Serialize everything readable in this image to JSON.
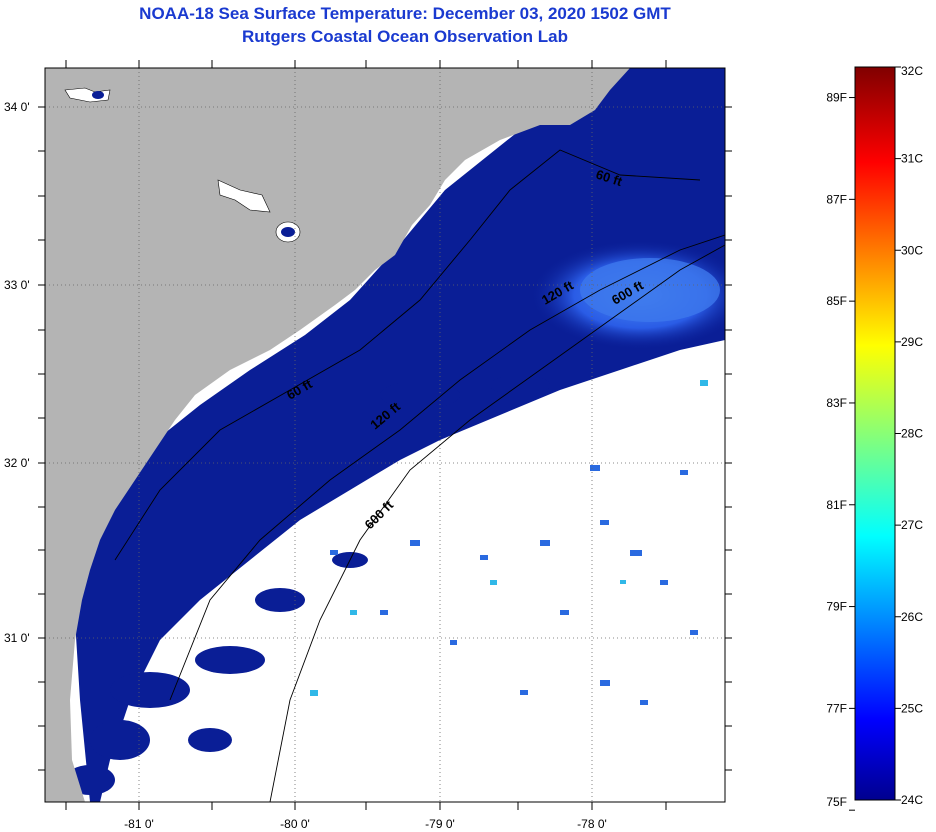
{
  "title": "NOAA-18 Sea Surface Temperature:  December 03, 2020 1502 GMT",
  "subtitle": "Rutgers Coastal Ocean Observation Lab",
  "map": {
    "lat_ticks": [
      {
        "label": "34 0'",
        "lat": 34.0
      },
      {
        "label": "33 0'",
        "lat": 33.0
      },
      {
        "label": "32 0'",
        "lat": 32.0
      },
      {
        "label": "31 0'",
        "lat": 31.0
      }
    ],
    "lon_ticks": [
      {
        "label": "-81 0'",
        "lon": -81.0
      },
      {
        "label": "-80 0'",
        "lon": -80.0
      },
      {
        "label": "-79 0'",
        "lon": -79.0
      },
      {
        "label": "-78 0'",
        "lon": -78.0
      }
    ],
    "isobaths": [
      "60 ft",
      "60 ft",
      "120 ft",
      "600 ft",
      "120 ft",
      "600 ft"
    ],
    "colors": {
      "land": "#b4b4b4",
      "cloud": "#ffffff",
      "shelf_water": "#0a1e96",
      "warm_water": "#2a5ce6",
      "contour": "#000000"
    }
  },
  "colorbar": {
    "range_c": [
      24,
      32
    ],
    "celsius_labels": [
      "32C",
      "31C",
      "30C",
      "29C",
      "28C",
      "27C",
      "26C",
      "25C",
      "24C"
    ],
    "fahrenheit_labels": [
      "89F",
      "87F",
      "85F",
      "83F",
      "81F",
      "79F",
      "77F",
      "75F"
    ]
  }
}
